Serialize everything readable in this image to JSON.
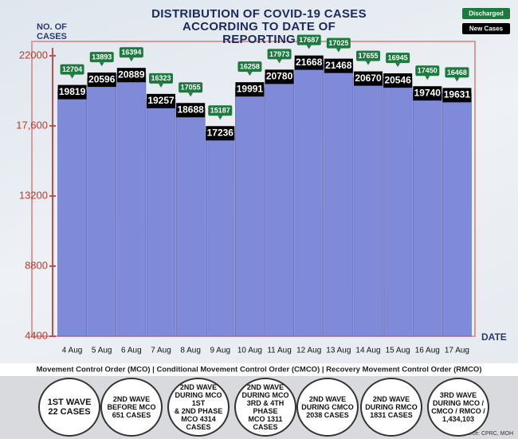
{
  "chart_data": {
    "type": "bar",
    "title": "DISTRIBUTION OF COVID-19 CASES ACCORDING TO DATE OF REPORTING",
    "y_label": "NO. OF CASES",
    "x_label": "DATE",
    "categories": [
      "4 Aug",
      "5 Aug",
      "6 Aug",
      "7 Aug",
      "8 Aug",
      "9 Aug",
      "10 Aug",
      "11 Aug",
      "12 Aug",
      "13 Aug",
      "14 Aug",
      "15 Aug",
      "16 Aug",
      "17 Aug"
    ],
    "series": [
      {
        "name": "New Cases",
        "color": "#7f8ad8",
        "values": [
          19819,
          20596,
          20889,
          19257,
          18688,
          17236,
          19991,
          20780,
          21668,
          21468,
          20670,
          20546,
          19740,
          19631
        ]
      },
      {
        "name": "Discharged",
        "color": "#1d7a3e",
        "values": [
          12704,
          13893,
          16394,
          16323,
          17055,
          15187,
          16258,
          17973,
          17687,
          17025,
          17655,
          16945,
          17450,
          16468
        ]
      }
    ],
    "ylim": [
      4400,
      22000
    ],
    "yticks": [
      4400,
      8800,
      13200,
      {
        "value": 17600,
        "label": "17,600"
      },
      22000
    ]
  },
  "footer": {
    "orders": "Movement Control Order (MCO) | Conditional Movement Control Order (CMCO) | Recovery Movement Control Order (RMCO)",
    "waves": [
      [
        "1ST WAVE",
        "22 CASES"
      ],
      [
        "2ND WAVE",
        "BEFORE MCO",
        "651 CASES"
      ],
      [
        "2ND WAVE",
        "DURING MCO 1ST",
        "& 2ND PHASE",
        "MCO 4314",
        "CASES"
      ],
      [
        "2ND WAVE",
        "DURING MCO",
        "3RD & 4TH PHASE",
        "MCO 1311",
        "CASES"
      ],
      [
        "2ND WAVE",
        "DURING CMCO",
        "2038 CASES"
      ],
      [
        "2ND WAVE",
        "DURING RMCO",
        "1831 CASES"
      ],
      [
        "3RD WAVE",
        "DURING MCO /",
        "CMCO / RMCO /",
        "1,434,103"
      ]
    ],
    "source": "Source: CPRC, MOH"
  }
}
